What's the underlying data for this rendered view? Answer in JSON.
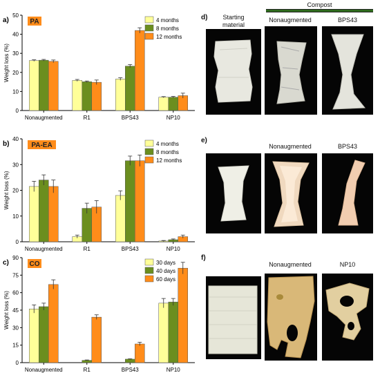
{
  "charts": [
    {
      "panel": "a)",
      "tag": "PA",
      "ylabel": "Weight loss (%)",
      "ylim": [
        0,
        50
      ],
      "yticks": [
        0,
        10,
        20,
        30,
        40,
        50
      ],
      "categories": [
        "Nonaugmented",
        "R1",
        "BPS43",
        "NP10"
      ],
      "legend": [
        "4 months",
        "8 months",
        "12 months"
      ]
    },
    {
      "panel": "b)",
      "tag": "PA-EA",
      "ylabel": "Weight loss (%)",
      "ylim": [
        0,
        40
      ],
      "yticks": [
        0,
        10,
        20,
        30,
        40
      ],
      "categories": [
        "Nonaugmented",
        "R1",
        "BPS43",
        "NP10"
      ],
      "legend": [
        "4 months",
        "8 months",
        "12 months"
      ]
    },
    {
      "panel": "c)",
      "tag": "CO",
      "ylabel": "Weight loss (%)",
      "ylim": [
        0,
        90
      ],
      "yticks": [
        0,
        15,
        30,
        45,
        60,
        75,
        90
      ],
      "categories": [
        "Nonaugmented",
        "R1",
        "BPS43",
        "NP10"
      ],
      "legend": [
        "30 days",
        "40 days",
        "60 days"
      ]
    }
  ],
  "chart_data": [
    {
      "type": "bar",
      "title": "PA",
      "ylabel": "Weight loss (%)",
      "ylim": [
        0,
        50
      ],
      "categories": [
        "Nonaugmented",
        "R1",
        "BPS43",
        "NP10"
      ],
      "series": [
        {
          "name": "4 months",
          "values": [
            26.2,
            15.8,
            16.5,
            7.0
          ],
          "errors": [
            0.4,
            0.5,
            0.7,
            0.3
          ]
        },
        {
          "name": "8 months",
          "values": [
            26.4,
            15.1,
            23.3,
            7.0
          ],
          "errors": [
            0.4,
            0.4,
            0.8,
            0.4
          ]
        },
        {
          "name": "12 months",
          "values": [
            25.8,
            14.8,
            42.0,
            7.8
          ],
          "errors": [
            0.7,
            1.2,
            1.4,
            1.3
          ]
        }
      ],
      "legend_position": "top-right",
      "grid": false
    },
    {
      "type": "bar",
      "title": "PA-EA",
      "ylabel": "Weight loss (%)",
      "ylim": [
        0,
        40
      ],
      "categories": [
        "Nonaugmented",
        "R1",
        "BPS43",
        "NP10"
      ],
      "series": [
        {
          "name": "4 months",
          "values": [
            21.5,
            2.0,
            18.0,
            0.3
          ],
          "errors": [
            2.0,
            0.6,
            1.8,
            0.2
          ]
        },
        {
          "name": "8 months",
          "values": [
            24.0,
            13.0,
            31.5,
            0.8
          ],
          "errors": [
            2.0,
            2.0,
            1.8,
            0.3
          ]
        },
        {
          "name": "12 months",
          "values": [
            21.5,
            13.5,
            31.5,
            2.0
          ],
          "errors": [
            2.5,
            2.5,
            2.2,
            0.6
          ]
        }
      ],
      "legend_position": "top-right",
      "grid": false
    },
    {
      "type": "bar",
      "title": "CO",
      "ylabel": "Weight loss (%)",
      "ylim": [
        0,
        90
      ],
      "categories": [
        "Nonaugmented",
        "R1",
        "BPS43",
        "NP10"
      ],
      "series": [
        {
          "name": "30 days",
          "values": [
            46,
            0,
            0,
            51
          ],
          "errors": [
            3.5,
            0,
            0,
            4
          ]
        },
        {
          "name": "40 days",
          "values": [
            48,
            2,
            3,
            52
          ],
          "errors": [
            3,
            0.3,
            0.3,
            3
          ]
        },
        {
          "name": "60 days",
          "values": [
            67,
            39,
            16,
            81
          ],
          "errors": [
            4,
            2,
            1.5,
            5
          ]
        }
      ],
      "legend_position": "top-right",
      "grid": false
    }
  ],
  "colors": {
    "series": [
      "#ffff99",
      "#6b8e1f",
      "#ff8c1a"
    ],
    "tag": "#ff8c1a",
    "compost_bar": "#2f6b1e"
  },
  "photos": {
    "d_label": "d)",
    "e_label": "e)",
    "f_label": "f)",
    "compost": "Compost",
    "starting_line1": "Starting",
    "starting_line2": "material",
    "nonaugmented_d": "Nonaugmented",
    "bps43_d": "BPS43",
    "nonaugmented_e": "Nonaugmented",
    "bps43_e": "BPS43",
    "nonaugmented_f": "Nonaugmented",
    "np10_f": "NP10"
  }
}
